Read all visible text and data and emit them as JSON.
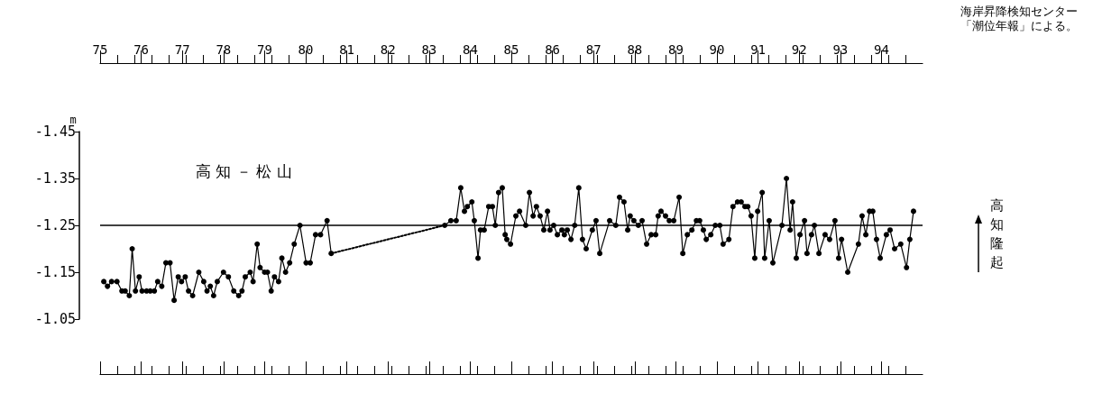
{
  "chart_data": {
    "type": "line",
    "title": "高 知 － 松 山",
    "ylabel": "m",
    "annotations": [
      "海岸昇降検知センター",
      "「潮位年報」による。",
      "高知隆起"
    ],
    "xlim": [
      1975,
      1995
    ],
    "xticks": [
      {
        "value": 1975,
        "label": "75"
      },
      {
        "value": 1976,
        "label": "76"
      },
      {
        "value": 1977,
        "label": "77"
      },
      {
        "value": 1978,
        "label": "78"
      },
      {
        "value": 1979,
        "label": "79"
      },
      {
        "value": 1980,
        "label": "80"
      },
      {
        "value": 1981,
        "label": "81"
      },
      {
        "value": 1982,
        "label": "82"
      },
      {
        "value": 1983,
        "label": "83"
      },
      {
        "value": 1984,
        "label": "84"
      },
      {
        "value": 1985,
        "label": "85"
      },
      {
        "value": 1986,
        "label": "86"
      },
      {
        "value": 1987,
        "label": "87"
      },
      {
        "value": 1988,
        "label": "88"
      },
      {
        "value": 1989,
        "label": "89"
      },
      {
        "value": 1990,
        "label": "90"
      },
      {
        "value": 1991,
        "label": "91"
      },
      {
        "value": 1992,
        "label": "92"
      },
      {
        "value": 1993,
        "label": "93"
      },
      {
        "value": 1994,
        "label": "94"
      }
    ],
    "ylim": [
      -1.05,
      -1.45
    ],
    "yticks": [
      -1.45,
      -1.35,
      -1.25,
      -1.15,
      -1.05
    ],
    "ref_lines": [
      {
        "axis": "y",
        "value": -1.25,
        "color": "#000000"
      }
    ],
    "grid": false,
    "marker": "circle",
    "line_style": "solid",
    "series": [
      {
        "color": "#000000",
        "x": [
          1975.09,
          1975.18,
          1975.28,
          1975.41,
          1975.53,
          1975.61,
          1975.71,
          1975.78,
          1975.86,
          1975.95,
          1976.02,
          1976.13,
          1976.22,
          1976.32,
          1976.4,
          1976.5,
          1976.6,
          1976.7,
          1976.8,
          1976.9,
          1976.98,
          1977.07,
          1977.15,
          1977.25,
          1977.4,
          1977.52,
          1977.6,
          1977.68,
          1977.76,
          1977.85,
          1978.0,
          1978.12,
          1978.25,
          1978.37,
          1978.45,
          1978.53,
          1978.65,
          1978.72,
          1978.82,
          1978.89,
          1979.0,
          1979.07,
          1979.16,
          1979.24,
          1979.34,
          1979.42,
          1979.51,
          1979.61,
          1979.72,
          1979.86,
          1980.01,
          1980.11,
          1980.24,
          1980.36,
          1980.52,
          1980.62
        ],
        "values": [
          -1.13,
          -1.12,
          -1.13,
          -1.13,
          -1.11,
          -1.11,
          -1.1,
          -1.2,
          -1.11,
          -1.14,
          -1.11,
          -1.11,
          -1.11,
          -1.11,
          -1.13,
          -1.12,
          -1.17,
          -1.17,
          -1.09,
          -1.14,
          -1.13,
          -1.14,
          -1.11,
          -1.1,
          -1.15,
          -1.13,
          -1.11,
          -1.12,
          -1.1,
          -1.13,
          -1.15,
          -1.14,
          -1.11,
          -1.1,
          -1.11,
          -1.14,
          -1.15,
          -1.13,
          -1.21,
          -1.16,
          -1.15,
          -1.15,
          -1.11,
          -1.14,
          -1.13,
          -1.18,
          -1.15,
          -1.17,
          -1.21,
          -1.25,
          -1.17,
          -1.17,
          -1.23,
          -1.23,
          -1.26,
          -1.19
        ]
      },
      {
        "color": "#000000",
        "line_style": "dotted",
        "marker": "none",
        "x": [
          1980.62,
          1983.38
        ],
        "values": [
          -1.19,
          -1.25
        ]
      },
      {
        "color": "#000000",
        "x": [
          1983.38,
          1983.53,
          1983.66,
          1983.77,
          1983.86,
          1983.93,
          1984.04,
          1984.1,
          1984.19,
          1984.25,
          1984.34,
          1984.45,
          1984.54,
          1984.61,
          1984.69,
          1984.78,
          1984.85,
          1984.89,
          1984.98,
          1985.11,
          1985.2,
          1985.35,
          1985.44,
          1985.53,
          1985.61,
          1985.7,
          1985.79,
          1985.88,
          1985.94,
          1986.03,
          1986.12,
          1986.23,
          1986.29,
          1986.36,
          1986.45,
          1986.54,
          1986.64,
          1986.73,
          1986.82,
          1986.97,
          1987.06,
          1987.15,
          1987.39,
          1987.54,
          1987.63,
          1987.74,
          1987.83,
          1987.89,
          1987.98,
          1988.09,
          1988.18,
          1988.29,
          1988.4,
          1988.51,
          1988.57,
          1988.64,
          1988.75,
          1988.84,
          1988.95,
          1989.08,
          1989.17,
          1989.28,
          1989.39,
          1989.5,
          1989.58,
          1989.67,
          1989.74,
          1989.85,
          1989.96,
          1990.07,
          1990.15,
          1990.29,
          1990.39,
          1990.5,
          1990.59,
          1990.68,
          1990.75,
          1990.83,
          1990.92,
          1990.99,
          1991.1,
          1991.16,
          1991.27,
          1991.36,
          1991.58,
          1991.69,
          1991.78,
          1991.84,
          1991.93,
          1992.02,
          1992.13,
          1992.19,
          1992.3,
          1992.37,
          1992.48,
          1992.63,
          1992.74,
          1992.87,
          1992.96,
          1993.03,
          1993.18,
          1993.44,
          1993.53,
          1993.62,
          1993.71,
          1993.79,
          1993.88,
          1993.97,
          1994.12,
          1994.21,
          1994.32,
          1994.47,
          1994.61,
          1994.69,
          1994.78
        ],
        "values": [
          -1.25,
          -1.26,
          -1.26,
          -1.33,
          -1.28,
          -1.29,
          -1.3,
          -1.26,
          -1.18,
          -1.24,
          -1.24,
          -1.29,
          -1.29,
          -1.25,
          -1.32,
          -1.33,
          -1.23,
          -1.22,
          -1.21,
          -1.27,
          -1.28,
          -1.25,
          -1.32,
          -1.27,
          -1.29,
          -1.27,
          -1.24,
          -1.28,
          -1.24,
          -1.25,
          -1.23,
          -1.24,
          -1.23,
          -1.24,
          -1.22,
          -1.25,
          -1.33,
          -1.22,
          -1.2,
          -1.24,
          -1.26,
          -1.19,
          -1.26,
          -1.25,
          -1.31,
          -1.3,
          -1.24,
          -1.27,
          -1.26,
          -1.25,
          -1.26,
          -1.21,
          -1.23,
          -1.23,
          -1.27,
          -1.28,
          -1.27,
          -1.26,
          -1.26,
          -1.31,
          -1.19,
          -1.23,
          -1.24,
          -1.26,
          -1.26,
          -1.24,
          -1.22,
          -1.23,
          -1.25,
          -1.25,
          -1.21,
          -1.22,
          -1.29,
          -1.3,
          -1.3,
          -1.29,
          -1.29,
          -1.27,
          -1.18,
          -1.28,
          -1.32,
          -1.18,
          -1.26,
          -1.17,
          -1.25,
          -1.35,
          -1.24,
          -1.3,
          -1.18,
          -1.23,
          -1.26,
          -1.19,
          -1.23,
          -1.25,
          -1.19,
          -1.23,
          -1.22,
          -1.26,
          -1.18,
          -1.22,
          -1.15,
          -1.21,
          -1.27,
          -1.23,
          -1.28,
          -1.28,
          -1.22,
          -1.18,
          -1.23,
          -1.24,
          -1.2,
          -1.21,
          -1.16,
          -1.22,
          -1.28
        ]
      }
    ]
  }
}
